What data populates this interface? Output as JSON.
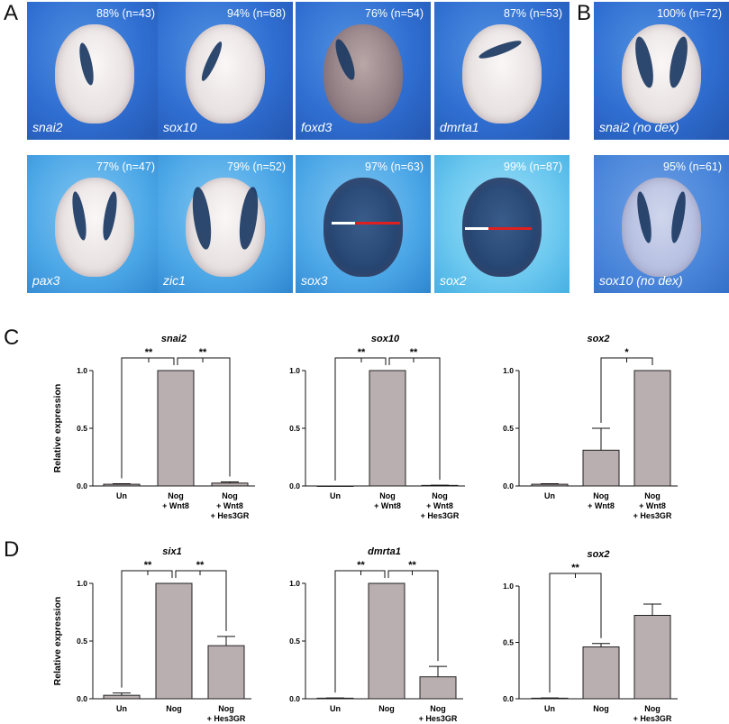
{
  "panels": {
    "A": "A",
    "B": "B",
    "C": "C",
    "D": "D"
  },
  "panel_a": [
    {
      "gene": "snai2",
      "pct": "88% (n=43)"
    },
    {
      "gene": "sox10",
      "pct": "94% (n=68)"
    },
    {
      "gene": "foxd3",
      "pct": "76% (n=54)"
    },
    {
      "gene": "dmrta1",
      "pct": "87% (n=53)"
    },
    {
      "gene": "pax3",
      "pct": "77% (n=47)"
    },
    {
      "gene": "zic1",
      "pct": "79% (n=52)"
    },
    {
      "gene": "sox3",
      "pct": "97% (n=63)"
    },
    {
      "gene": "sox2",
      "pct": "99% (n=87)"
    }
  ],
  "panel_b": [
    {
      "gene": "snai2 (no dex)",
      "pct": "100% (n=72)"
    },
    {
      "gene": "sox10 (no dex)",
      "pct": "95% (n=61)"
    }
  ],
  "colors": {
    "bar": "#b9aeb0",
    "bar_edge": "#222222",
    "tile_blue": "#2f6ed1",
    "tile_light": "#4ba6e6",
    "stain": "#1c3a63"
  },
  "chart_data": [
    {
      "panel": "C",
      "type": "bar",
      "title": "snai2",
      "ylabel": "Relative expression",
      "categories": [
        [
          "Un"
        ],
        [
          "Nog",
          "+ Wnt8"
        ],
        [
          "Nog",
          "+ Wnt8",
          "+ Hes3GR"
        ]
      ],
      "values": [
        0.015,
        1.0,
        0.025
      ],
      "errors": [
        0.005,
        0,
        0.01
      ],
      "ylim": [
        0,
        1.0
      ],
      "yticks": [
        "0.0",
        "0.5",
        "1.0"
      ],
      "significance": [
        {
          "from": 0,
          "to": 1,
          "label": "**"
        },
        {
          "from": 1,
          "to": 2,
          "label": "**"
        }
      ]
    },
    {
      "panel": "C",
      "type": "bar",
      "title": "sox10",
      "ylabel": "",
      "categories": [
        [
          "Un"
        ],
        [
          "Nog",
          "+ Wnt8"
        ],
        [
          "Nog",
          "+ Wnt8",
          "+ Hes3GR"
        ]
      ],
      "values": [
        0.0,
        1.0,
        0.005
      ],
      "errors": [
        0,
        0,
        0.002
      ],
      "ylim": [
        0,
        1.0
      ],
      "yticks": [
        "0.0",
        "0.5",
        "1.0"
      ],
      "significance": [
        {
          "from": 0,
          "to": 1,
          "label": "**"
        },
        {
          "from": 1,
          "to": 2,
          "label": "**"
        }
      ]
    },
    {
      "panel": "C",
      "type": "bar",
      "title": "sox2",
      "ylabel": "",
      "categories": [
        [
          "Un"
        ],
        [
          "Nog",
          "+ Wnt8"
        ],
        [
          "Nog",
          "+ Wnt8",
          "+ Hes3GR"
        ]
      ],
      "values": [
        0.015,
        0.31,
        1.0
      ],
      "errors": [
        0.005,
        0.19,
        0
      ],
      "ylim": [
        0,
        1.0
      ],
      "yticks": [
        "0.0",
        "0.5",
        "1.0"
      ],
      "significance": [
        {
          "from": 1,
          "to": 2,
          "label": "*"
        }
      ]
    },
    {
      "panel": "D",
      "type": "bar",
      "title": "six1",
      "ylabel": "Relative expression",
      "categories": [
        [
          "Un"
        ],
        [
          "Nog"
        ],
        [
          "Nog",
          "+ Hes3GR"
        ]
      ],
      "values": [
        0.03,
        1.0,
        0.46
      ],
      "errors": [
        0.02,
        0,
        0.08
      ],
      "ylim": [
        0,
        1.0
      ],
      "yticks": [
        "0.0",
        "0.5",
        "1.0"
      ],
      "significance": [
        {
          "from": 0,
          "to": 1,
          "label": "**"
        },
        {
          "from": 1,
          "to": 2,
          "label": "**"
        }
      ]
    },
    {
      "panel": "D",
      "type": "bar",
      "title": "dmrta1",
      "ylabel": "",
      "categories": [
        [
          "Un"
        ],
        [
          "Nog"
        ],
        [
          "Nog",
          "+ Hes3GR"
        ]
      ],
      "values": [
        0.005,
        1.0,
        0.19
      ],
      "errors": [
        0.002,
        0,
        0.09
      ],
      "ylim": [
        0,
        1.0
      ],
      "yticks": [
        "0.0",
        "0.5",
        "1.0"
      ],
      "significance": [
        {
          "from": 0,
          "to": 1,
          "label": "**"
        },
        {
          "from": 1,
          "to": 2,
          "label": "**"
        }
      ]
    },
    {
      "panel": "D",
      "type": "bar",
      "title": "sox2",
      "ylabel": "",
      "categories": [
        [
          "Un"
        ],
        [
          "Nog"
        ],
        [
          "Nog",
          "+ Hes3GR"
        ]
      ],
      "values": [
        0.005,
        0.46,
        0.74
      ],
      "errors": [
        0.002,
        0.03,
        0.1
      ],
      "ylim": [
        0,
        1.0
      ],
      "yticks": [
        "0.0",
        "0.5",
        "1.0"
      ],
      "significance": [
        {
          "from": 0,
          "to": 1,
          "label": "**"
        }
      ]
    }
  ]
}
